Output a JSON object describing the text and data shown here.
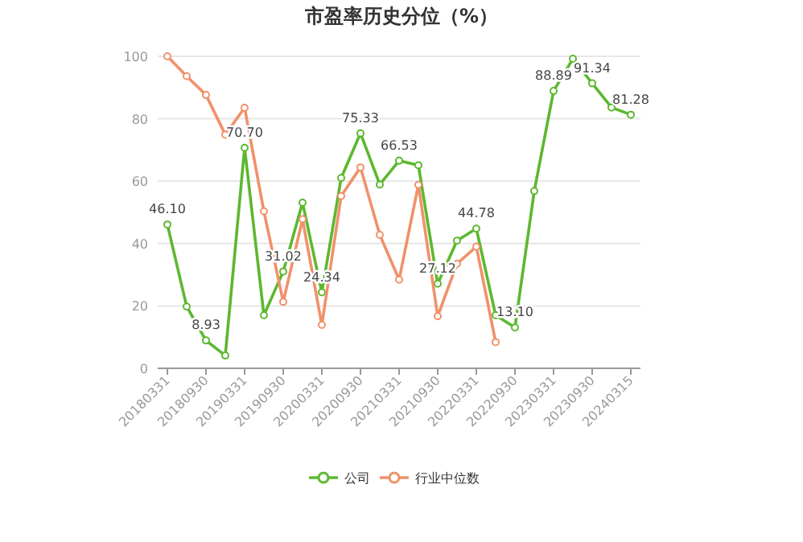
{
  "chart_data": {
    "type": "line",
    "title": "市盈率历史分位（%）",
    "categories": [
      "20180331",
      null,
      "20180930",
      null,
      "20190331",
      null,
      "20190930",
      null,
      "20200331",
      null,
      "20200930",
      null,
      "20210331",
      null,
      "20210930",
      null,
      "20220331",
      null,
      "20220930",
      null,
      "20230331",
      null,
      "20230930",
      null,
      "20240315"
    ],
    "series": [
      {
        "name": "公司",
        "color": "#5cb82f",
        "values": [
          46.1,
          19.8,
          8.93,
          4.1,
          70.7,
          17.0,
          31.02,
          53.1,
          24.34,
          61.0,
          75.33,
          58.9,
          66.53,
          65.1,
          27.12,
          40.9,
          44.78,
          17.0,
          13.1,
          56.8,
          88.89,
          99.2,
          91.34,
          83.6,
          81.28
        ],
        "value_labels": [
          "46.10",
          null,
          "8.93",
          null,
          "70.70",
          null,
          "31.02",
          null,
          "24.34",
          null,
          "75.33",
          null,
          "66.53",
          null,
          "27.12",
          null,
          "44.78",
          null,
          "13.10",
          null,
          "88.89",
          null,
          "91.34",
          null,
          "81.28"
        ]
      },
      {
        "name": "行业中位数",
        "color": "#f0916a",
        "values": [
          100,
          93.6,
          87.6,
          74.9,
          83.5,
          50.3,
          21.3,
          47.8,
          13.9,
          55.2,
          64.4,
          42.8,
          28.4,
          58.8,
          16.7,
          33.5,
          39.0,
          8.4,
          null,
          null,
          null,
          null,
          null,
          null,
          null
        ]
      }
    ],
    "ylim": [
      0,
      100
    ],
    "yticks": [
      0,
      20,
      40,
      60,
      80,
      100
    ],
    "grid": "y",
    "legend": "bottom",
    "marker": "circle"
  }
}
